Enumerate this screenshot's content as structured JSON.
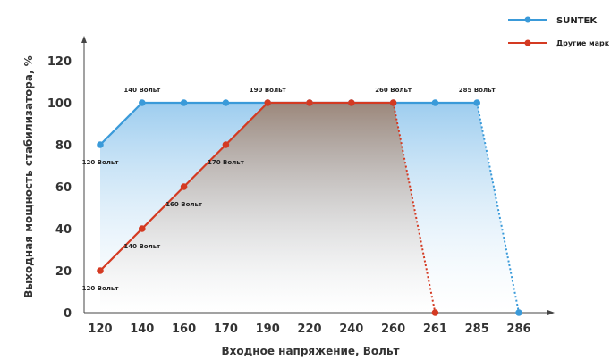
{
  "chart_data": {
    "type": "line",
    "xlabel": "Входное напряжение, Вольт",
    "ylabel": "Выходная мощность стабилизатора, %",
    "categories": [
      "120",
      "140",
      "160",
      "170",
      "190",
      "220",
      "240",
      "260",
      "261",
      "285",
      "286"
    ],
    "yticks": [
      "0",
      "20",
      "40",
      "60",
      "80",
      "100",
      "120"
    ],
    "ylim": [
      0,
      120
    ],
    "grid": false,
    "legend_position": "top-right",
    "series": [
      {
        "name": "SUNTEK",
        "color": "#3a9ad9",
        "x": [
          "120",
          "140",
          "160",
          "170",
          "190",
          "220",
          "240",
          "260",
          "261",
          "285",
          "286"
        ],
        "values": [
          80,
          100,
          100,
          100,
          100,
          100,
          100,
          100,
          100,
          100,
          0
        ],
        "dashed_segment": [
          "285",
          "286"
        ],
        "point_labels": [
          {
            "x": "120",
            "text": "120 Вольт",
            "pos": "below"
          },
          {
            "x": "140",
            "text": "140 Вольт",
            "pos": "above"
          },
          {
            "x": "285",
            "text": "285 Вольт",
            "pos": "above"
          }
        ]
      },
      {
        "name": "Другие марк",
        "color": "#d43a22",
        "x": [
          "120",
          "140",
          "160",
          "170",
          "190",
          "220",
          "240",
          "260",
          "261"
        ],
        "values": [
          20,
          40,
          60,
          80,
          100,
          100,
          100,
          100,
          0
        ],
        "dashed_segment": [
          "260",
          "261"
        ],
        "point_labels": [
          {
            "x": "120",
            "text": "120 Вольт",
            "pos": "below"
          },
          {
            "x": "140",
            "text": "140 Вольт",
            "pos": "below"
          },
          {
            "x": "160",
            "text": "160 Вольт",
            "pos": "below"
          },
          {
            "x": "170",
            "text": "170 Вольт",
            "pos": "below"
          },
          {
            "x": "190",
            "text": "190 Вольт",
            "pos": "above"
          },
          {
            "x": "260",
            "text": "260 Вольт",
            "pos": "above"
          }
        ]
      }
    ]
  }
}
